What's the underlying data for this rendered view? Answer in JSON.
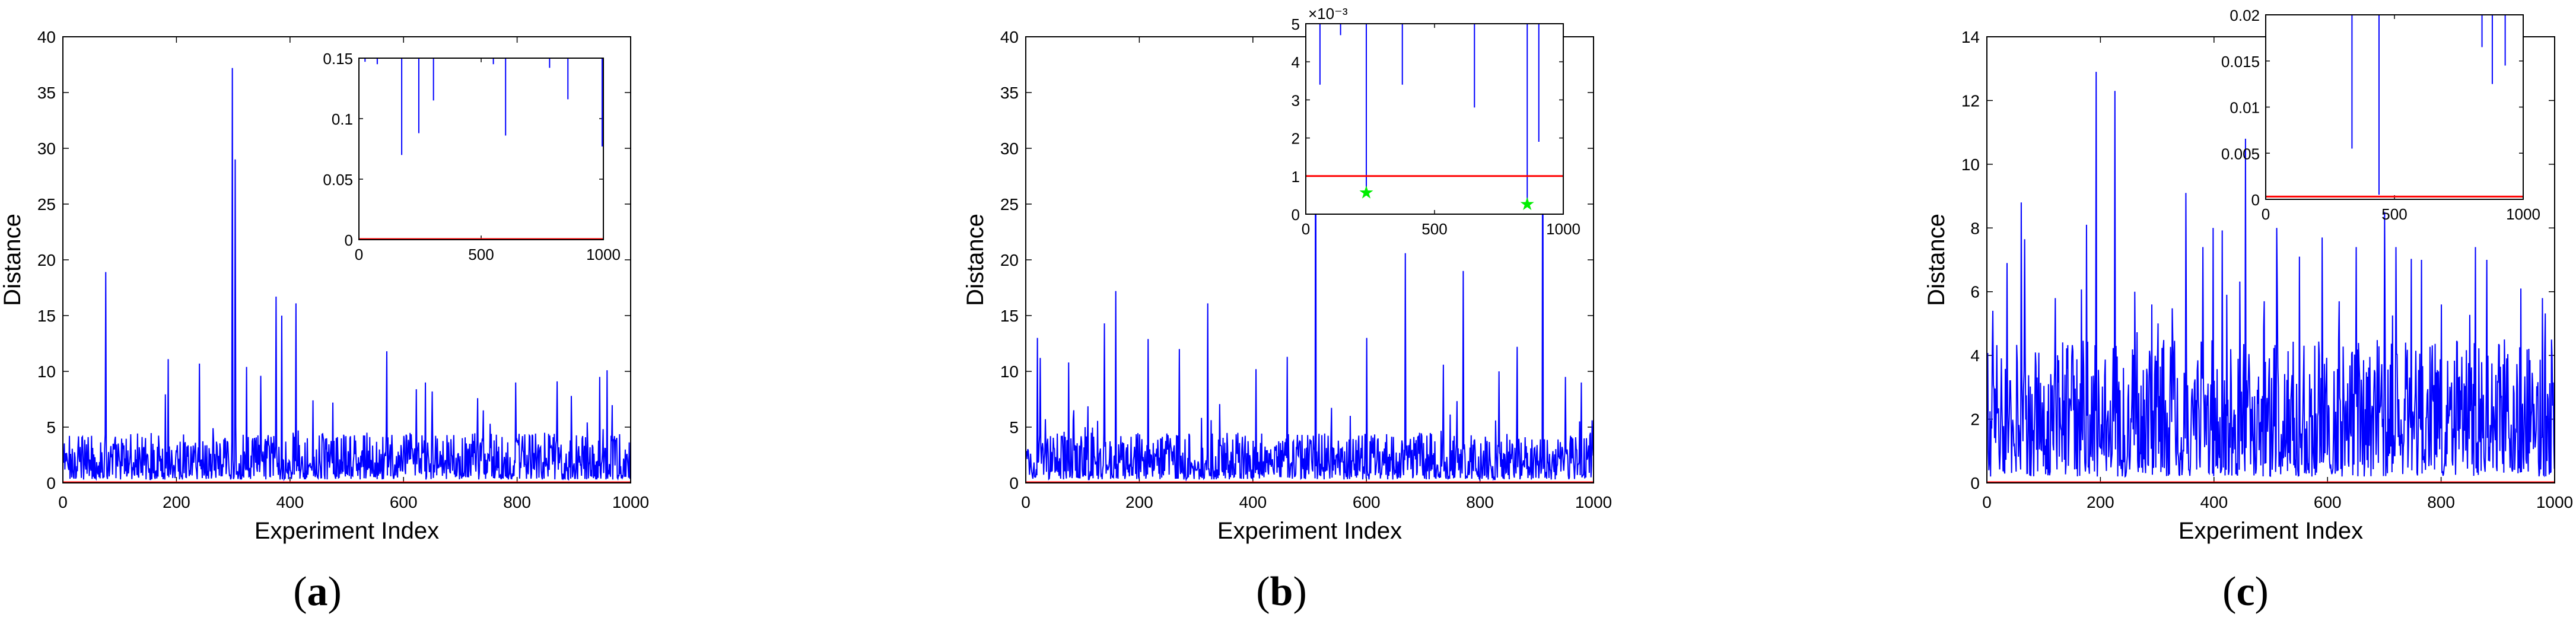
{
  "figure": {
    "panels": [
      {
        "caption": {
          "open": "(",
          "letter": "a",
          "close": ")"
        }
      },
      {
        "caption": {
          "open": "(",
          "letter": "b",
          "close": ")"
        }
      },
      {
        "caption": {
          "open": "(",
          "letter": "c",
          "close": ")"
        }
      }
    ]
  },
  "chart_data": [
    {
      "id": "a",
      "type": "line",
      "xlabel": "Experiment Index",
      "ylabel": "Distance",
      "xlim": [
        0,
        1000
      ],
      "ylim": [
        0,
        40
      ],
      "xticks": [
        0,
        200,
        400,
        600,
        800,
        1000
      ],
      "yticks": [
        0,
        5,
        10,
        15,
        20,
        25,
        30,
        35,
        40
      ],
      "grid": false,
      "series": [
        {
          "name": "distance",
          "color": "#0000ff",
          "n": 1000,
          "base_range": [
            0.3,
            4.5
          ],
          "peaks": [
            [
              75,
              18.9
            ],
            [
              185,
              11.1
            ],
            [
              240,
              10.7
            ],
            [
              298,
              37.2
            ],
            [
              303,
              29.0
            ],
            [
              323,
              10.4
            ],
            [
              348,
              9.6
            ],
            [
              375,
              16.7
            ],
            [
              385,
              15.0
            ],
            [
              410,
              16.1
            ],
            [
              440,
              7.4
            ],
            [
              475,
              7.2
            ],
            [
              570,
              11.8
            ],
            [
              622,
              8.4
            ],
            [
              638,
              9.0
            ],
            [
              650,
              8.2
            ],
            [
              730,
              7.6
            ],
            [
              797,
              9.0
            ],
            [
              870,
              9.1
            ],
            [
              895,
              7.8
            ],
            [
              945,
              9.5
            ],
            [
              958,
              10.1
            ]
          ]
        },
        {
          "name": "threshold",
          "color": "#ff0000",
          "value": 0
        }
      ],
      "inset": {
        "xlim": [
          0,
          1000
        ],
        "ylim": [
          0,
          0.15
        ],
        "xticks": [
          0,
          500,
          1000
        ],
        "yticks": [
          0,
          0.05,
          0.1,
          0.15
        ],
        "drops": [
          [
            25,
            0.147
          ],
          [
            75,
            0.145
          ],
          [
            175,
            0.07
          ],
          [
            245,
            0.088
          ],
          [
            305,
            0.115
          ],
          [
            550,
            0.145
          ],
          [
            600,
            0.086
          ],
          [
            780,
            0.142
          ],
          [
            855,
            0.116
          ],
          [
            995,
            0.077
          ]
        ],
        "threshold": 0
      }
    },
    {
      "id": "b",
      "type": "line",
      "xlabel": "Experiment Index",
      "ylabel": "Distance",
      "xlim": [
        0,
        1000
      ],
      "ylim": [
        0,
        40
      ],
      "xticks": [
        0,
        200,
        400,
        600,
        800,
        1000
      ],
      "yticks": [
        0,
        5,
        10,
        15,
        20,
        25,
        30,
        35,
        40
      ],
      "grid": false,
      "series": [
        {
          "name": "distance",
          "color": "#0000ff",
          "n": 1000,
          "base_range": [
            0.3,
            4.5
          ],
          "peaks": [
            [
              20,
              13.0
            ],
            [
              25,
              11.2
            ],
            [
              75,
              10.8
            ],
            [
              138,
              14.3
            ],
            [
              158,
              17.2
            ],
            [
              215,
              12.9
            ],
            [
              270,
              12.0
            ],
            [
              320,
              16.1
            ],
            [
              405,
              10.2
            ],
            [
              460,
              11.3
            ],
            [
              510,
              40.0
            ],
            [
              600,
              13.0
            ],
            [
              668,
              20.6
            ],
            [
              735,
              10.6
            ],
            [
              770,
              19.0
            ],
            [
              833,
              10.0
            ],
            [
              865,
              12.2
            ],
            [
              910,
              40.0
            ],
            [
              950,
              9.5
            ],
            [
              978,
              9.0
            ]
          ]
        },
        {
          "name": "threshold",
          "color": "#ff0000",
          "value": 0
        }
      ],
      "inset": {
        "xlim": [
          0,
          1000
        ],
        "ylim": [
          0,
          5
        ],
        "exponent_label": "×10⁻³",
        "xticks": [
          0,
          500,
          1000
        ],
        "yticks": [
          0,
          1,
          2,
          3,
          4,
          5
        ],
        "drops": [
          [
            55,
            3.4
          ],
          [
            135,
            4.7
          ],
          [
            235,
            0.55
          ],
          [
            375,
            3.4
          ],
          [
            655,
            2.8
          ],
          [
            860,
            0.3
          ],
          [
            905,
            1.9
          ]
        ],
        "threshold": 1.0,
        "markers": [
          [
            235,
            0.55
          ],
          [
            860,
            0.25
          ]
        ],
        "marker_color": "#00ee00"
      }
    },
    {
      "id": "c",
      "type": "line",
      "xlabel": "Experiment Index",
      "ylabel": "Distance",
      "xlim": [
        0,
        1000
      ],
      "ylim": [
        0,
        14
      ],
      "xticks": [
        0,
        200,
        400,
        600,
        800,
        1000
      ],
      "yticks": [
        0,
        2,
        4,
        6,
        8,
        10,
        12,
        14
      ],
      "grid": false,
      "series": [
        {
          "name": "distance",
          "color": "#0000ff",
          "n": 1000,
          "base_range": [
            0.2,
            4.5
          ],
          "peaks": [
            [
              10,
              5.4
            ],
            [
              60,
              8.8
            ],
            [
              120,
              5.8
            ],
            [
              175,
              8.1
            ],
            [
              192,
              12.9
            ],
            [
              225,
              12.3
            ],
            [
              260,
              6.0
            ],
            [
              290,
              5.6
            ],
            [
              350,
              9.1
            ],
            [
              380,
              7.4
            ],
            [
              398,
              8.0
            ],
            [
              455,
              10.8
            ],
            [
              488,
              5.7
            ],
            [
              510,
              8.0
            ],
            [
              550,
              7.1
            ],
            [
              590,
              7.7
            ],
            [
              620,
              5.7
            ],
            [
              650,
              7.4
            ],
            [
              700,
              8.5
            ],
            [
              720,
              7.4
            ],
            [
              765,
              7.0
            ],
            [
              800,
              5.6
            ],
            [
              860,
              7.4
            ],
            [
              880,
              7.0
            ],
            [
              940,
              6.1
            ],
            [
              978,
              5.8
            ]
          ]
        },
        {
          "name": "threshold",
          "color": "#ff0000",
          "value": 0
        }
      ],
      "inset": {
        "xlim": [
          0,
          1000
        ],
        "ylim": [
          0,
          0.02
        ],
        "xticks": [
          0,
          500,
          1000
        ],
        "yticks": [
          0,
          0.005,
          0.01,
          0.015,
          0.02
        ],
        "tick_labels": [
          "0",
          "0.005",
          "0.01",
          "0.015",
          "0.02"
        ],
        "drops": [
          [
            335,
            0.0055
          ],
          [
            440,
            0.0005
          ],
          [
            840,
            0.0165
          ],
          [
            880,
            0.0125
          ],
          [
            930,
            0.0145
          ]
        ],
        "threshold": 0.0003
      }
    }
  ]
}
